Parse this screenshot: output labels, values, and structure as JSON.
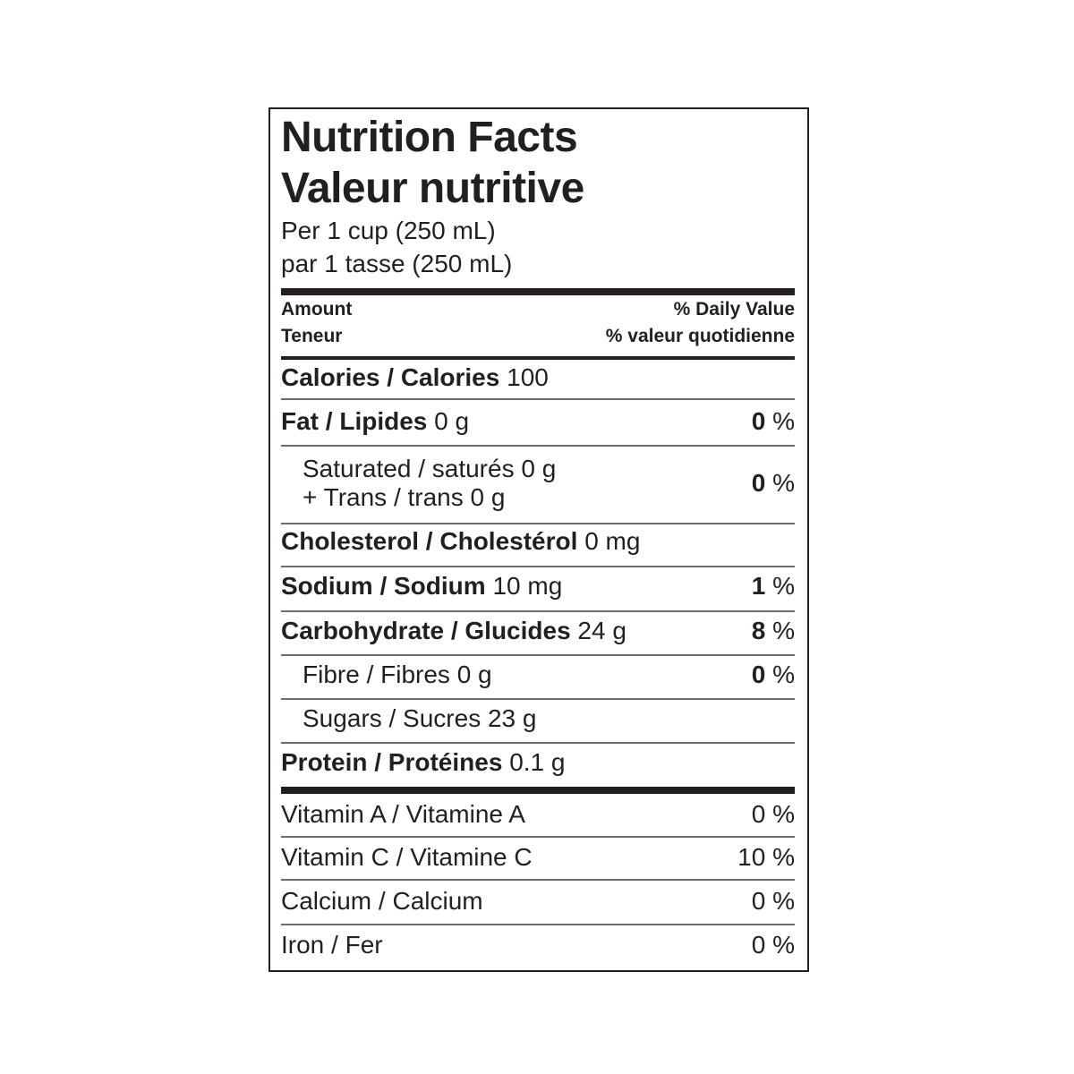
{
  "title_en": "Nutrition Facts",
  "title_fr": "Valeur nutritive",
  "serving_en": "Per 1 cup (250 mL)",
  "serving_fr": "par 1 tasse (250 mL)",
  "header": {
    "amount_en": "Amount",
    "amount_fr": "Teneur",
    "dv_en": "% Daily Value",
    "dv_fr": "% valeur quotidienne"
  },
  "rows": [
    {
      "label": "Calories / Calories",
      "value": "100",
      "dv": ""
    },
    {
      "label": "Fat / Lipides",
      "value": "0 g",
      "dv": "0",
      "unit": " %"
    },
    {
      "label": "Saturated / saturés 0 g",
      "label2": "+ Trans / trans 0 g",
      "dv": "0",
      "unit": " %"
    },
    {
      "label": "Cholesterol / Cholestérol",
      "value": "0 mg",
      "dv": ""
    },
    {
      "label": "Sodium / Sodium",
      "value": "10 mg",
      "dv": "1",
      "unit": " %"
    },
    {
      "label": "Carbohydrate / Glucides",
      "value": "24 g",
      "dv": "8",
      "unit": " %"
    },
    {
      "label": "Fibre / Fibres 0 g",
      "dv": "0",
      "unit": " %"
    },
    {
      "label": "Sugars / Sucres 23 g",
      "dv": ""
    },
    {
      "label": "Protein / Protéines",
      "value": "0.1 g",
      "dv": ""
    }
  ],
  "vitamins": [
    {
      "label": "Vitamin A / Vitamine A",
      "dv": "0 %"
    },
    {
      "label": "Vitamin C / Vitamine C",
      "dv": "10 %"
    },
    {
      "label": "Calcium / Calcium",
      "dv": "0 %"
    },
    {
      "label": "Iron / Fer",
      "dv": "0 %"
    }
  ]
}
